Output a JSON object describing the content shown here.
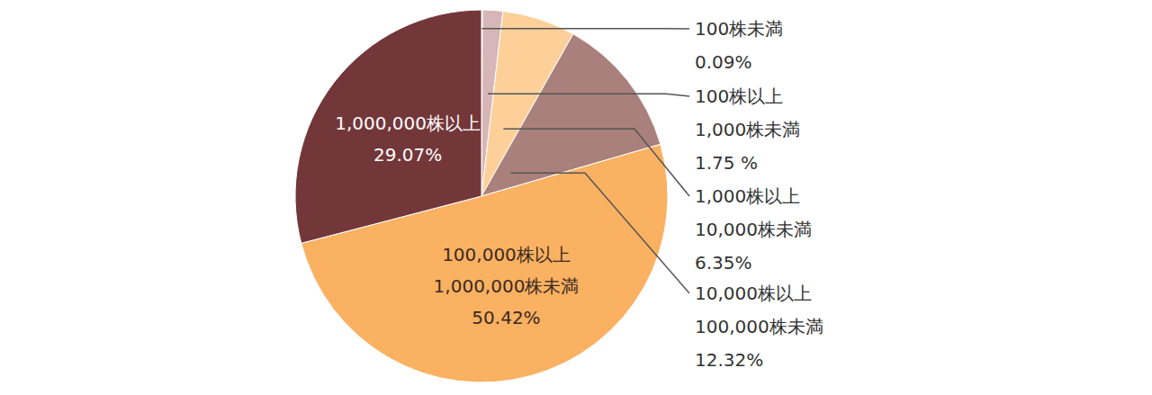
{
  "chart_data": {
    "type": "pie",
    "categories": [
      "100株未満",
      "100株以上\n1,000株未満",
      "1,000株以上\n10,000株未満",
      "10,000株以上\n100,000株未満",
      "100,000株以上\n1,000,000株未満",
      "1,000,000株以上"
    ],
    "values": [
      0.09,
      1.75,
      6.35,
      12.32,
      50.42,
      29.07
    ],
    "value_labels": [
      "0.09%",
      "1.75 %",
      "6.35%",
      "12.32%",
      "50.42%",
      "29.07%"
    ],
    "colors": [
      "#f0dede",
      "#d6b6b6",
      "#fdd09a",
      "#a9807b",
      "#fab162",
      "#73373a"
    ],
    "data_labels": true
  }
}
